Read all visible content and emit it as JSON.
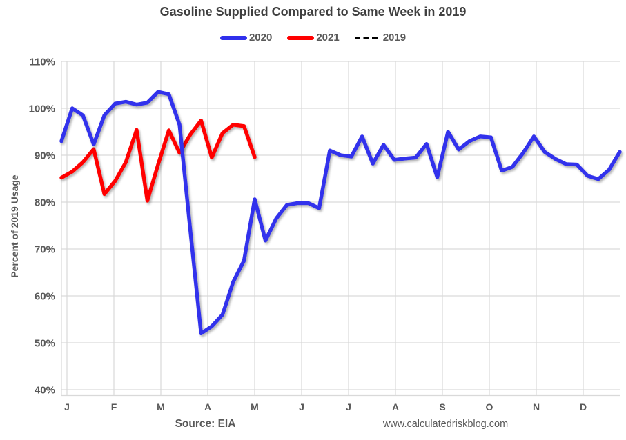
{
  "title": "Gasoline Supplied Compared to Same Week in 2019",
  "legend": {
    "items": [
      {
        "label": "2020",
        "color": "#3030EC",
        "style": "solid"
      },
      {
        "label": "2021",
        "color": "#FF0000",
        "style": "solid"
      },
      {
        "label": "2019",
        "color": "#000000",
        "style": "dashed"
      }
    ]
  },
  "y_axis": {
    "title": "Percent of 2019 Usage",
    "ticks": [
      {
        "value": 110,
        "label": "110%"
      },
      {
        "value": 100,
        "label": "100%"
      },
      {
        "value": 90,
        "label": "90%"
      },
      {
        "value": 80,
        "label": "80%"
      },
      {
        "value": 70,
        "label": "70%"
      },
      {
        "value": 60,
        "label": "60%"
      },
      {
        "value": 50,
        "label": "50%"
      },
      {
        "value": 40,
        "label": "40%"
      }
    ]
  },
  "x_axis": {
    "ticks": [
      "J",
      "F",
      "M",
      "A",
      "M",
      "J",
      "J",
      "A",
      "S",
      "O",
      "N",
      "D"
    ]
  },
  "footer": {
    "source": "Source: EIA",
    "website": "www.calculatedriskblog.com"
  },
  "colors": {
    "grid": "#D9D9D9",
    "axis_text": "#595959",
    "title_text": "#404040",
    "blue_2020": "#3030EC",
    "red_2021": "#FF0000",
    "black_2019": "#000000"
  },
  "chart_data": {
    "type": "line",
    "title": "Gasoline Supplied Compared to Same Week in 2019",
    "xlabel": "",
    "ylabel": "Percent of 2019 Usage",
    "ylim": [
      40,
      110
    ],
    "ytick_step": 10,
    "x_unit": "week of year (weekly data points)",
    "x_tick_labels": [
      "J",
      "F",
      "M",
      "A",
      "M",
      "J",
      "J",
      "A",
      "S",
      "O",
      "N",
      "D"
    ],
    "grid": true,
    "legend_position": "top-center",
    "series": [
      {
        "name": "2020",
        "color": "#3030EC",
        "line_style": "solid",
        "values": [
          93,
          100,
          98.5,
          92.3,
          98.5,
          101,
          101.4,
          100.8,
          101.2,
          103.5,
          103,
          96.5,
          74,
          52,
          53.5,
          56,
          63,
          67.5,
          80.6,
          71.8,
          76.5,
          79.4,
          79.8,
          79.8,
          78.7,
          91,
          90,
          89.7,
          94,
          88.2,
          92.2,
          89,
          89.3,
          89.5,
          92.4,
          85.3,
          95,
          91.2,
          93,
          94,
          93.8,
          86.7,
          87.5,
          90.5,
          94,
          90.7,
          89.2,
          88.1,
          88,
          85.6,
          84.9,
          86.9,
          90.7
        ]
      },
      {
        "name": "2021",
        "color": "#FF0000",
        "line_style": "solid",
        "values": [
          85.2,
          86.5,
          88.5,
          91.3,
          81.7,
          84.5,
          88.5,
          95.4,
          80.3,
          88,
          95.3,
          90.5,
          94.4,
          97.4,
          89.5,
          94.7,
          96.5,
          96.2,
          89.6
        ]
      },
      {
        "name": "2019",
        "color": "#000000",
        "line_style": "dashed",
        "baseline": 100
      }
    ]
  }
}
